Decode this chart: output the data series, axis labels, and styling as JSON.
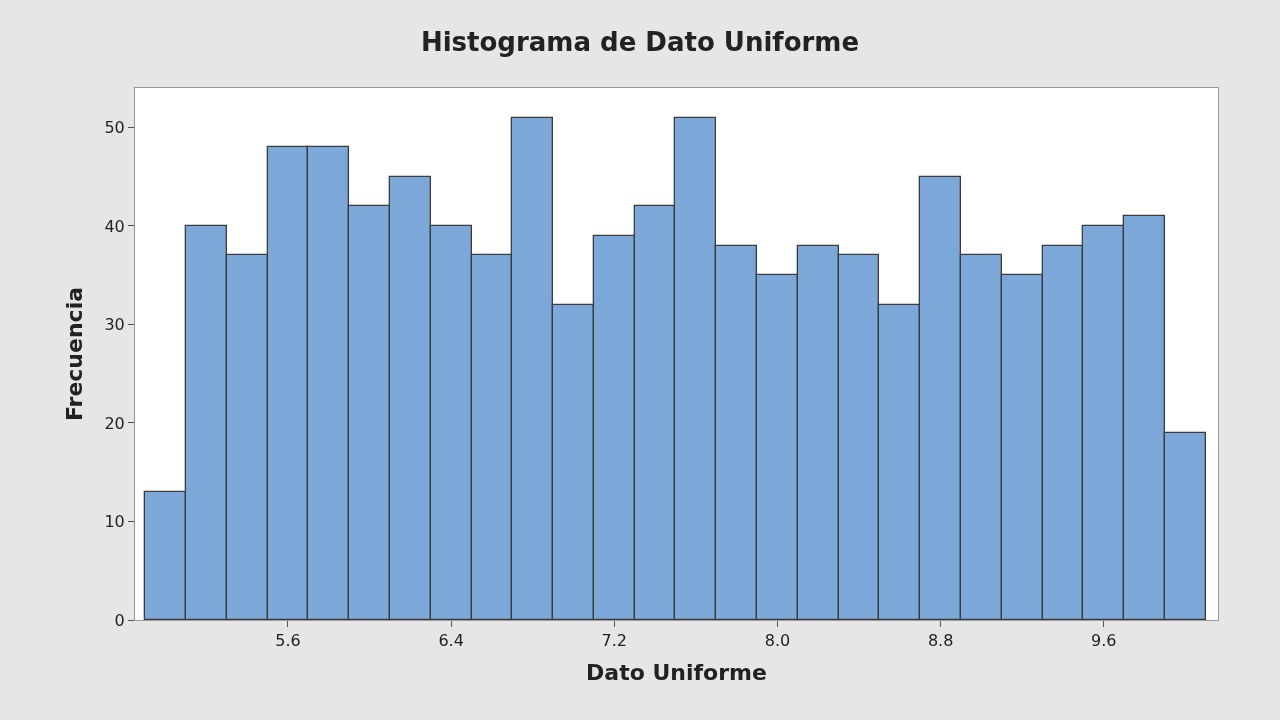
{
  "chart_data": {
    "type": "histogram",
    "title": "Histograma de Dato Uniforme",
    "xlabel": "Dato Uniforme",
    "ylabel": "Frecuencia",
    "bins": [
      4.9,
      5.1,
      5.3,
      5.5,
      5.7,
      5.9,
      6.1,
      6.3,
      6.5,
      6.7,
      6.9,
      7.1,
      7.3,
      7.5,
      7.7,
      7.9,
      8.1,
      8.3,
      8.5,
      8.7,
      8.9,
      9.1,
      9.3,
      9.5,
      9.7,
      9.9,
      10.1
    ],
    "values": [
      13,
      40,
      37,
      48,
      48,
      42,
      45,
      40,
      37,
      51,
      32,
      39,
      42,
      51,
      38,
      35,
      38,
      37,
      32,
      45,
      37,
      35,
      38,
      40,
      41,
      19
    ],
    "color": "#7ba7d9",
    "xlim": [
      4.85,
      10.16
    ],
    "xticks": [
      5.6,
      6.4,
      7.2,
      {
        "value": 8,
        "label": "8.0"
      },
      8.8,
      9.6
    ],
    "ylim": [
      0,
      54
    ],
    "yticks": [
      0,
      10,
      20,
      30,
      40,
      50
    ]
  }
}
